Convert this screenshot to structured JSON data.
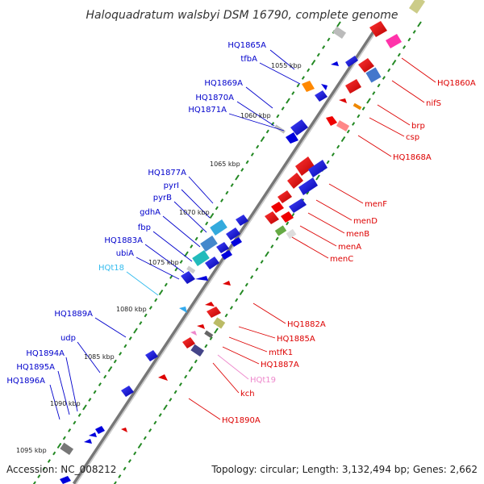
{
  "title": "Haloquadratum walsbyi DSM 16790, complete genome",
  "footer": {
    "accession": "Accession: NC_008212",
    "summary": "Topology: circular; Length: 3,132,494 bp; Genes: 2,662"
  },
  "kbp_labels": [
    "1055 kbp",
    "1060 kbp",
    "1065 kbp",
    "1070 kbp",
    "1075 kbp",
    "1080 kbp",
    "1085 kbp",
    "1090 kbp",
    "1095 kbp"
  ],
  "left_labels": [
    {
      "text": "HQ1865A",
      "color": "#0000cc"
    },
    {
      "text": "tfbA",
      "color": "#0000cc"
    },
    {
      "text": "HQ1869A",
      "color": "#0000cc"
    },
    {
      "text": "HQ1870A",
      "color": "#0000cc"
    },
    {
      "text": "HQ1871A",
      "color": "#0000cc"
    },
    {
      "text": "HQ1877A",
      "color": "#0000cc"
    },
    {
      "text": "pyrI",
      "color": "#0000cc"
    },
    {
      "text": "pyrB",
      "color": "#0000cc"
    },
    {
      "text": "gdhA",
      "color": "#0000cc"
    },
    {
      "text": "fbp",
      "color": "#0000cc"
    },
    {
      "text": "HQ1883A",
      "color": "#0000cc"
    },
    {
      "text": "ubiA",
      "color": "#0000cc"
    },
    {
      "text": "HQt18",
      "color": "#33bbee"
    },
    {
      "text": "HQ1889A",
      "color": "#0000cc"
    },
    {
      "text": "udp",
      "color": "#0000cc"
    },
    {
      "text": "HQ1894A",
      "color": "#0000cc"
    },
    {
      "text": "HQ1895A",
      "color": "#0000cc"
    },
    {
      "text": "HQ1896A",
      "color": "#0000cc"
    }
  ],
  "right_labels": [
    {
      "text": "HQ1860A",
      "color": "#dd0000"
    },
    {
      "text": "nifS",
      "color": "#dd0000"
    },
    {
      "text": "brp",
      "color": "#dd0000"
    },
    {
      "text": "csp",
      "color": "#dd0000"
    },
    {
      "text": "HQ1868A",
      "color": "#dd0000"
    },
    {
      "text": "menF",
      "color": "#dd0000"
    },
    {
      "text": "menD",
      "color": "#dd0000"
    },
    {
      "text": "menB",
      "color": "#dd0000"
    },
    {
      "text": "menA",
      "color": "#dd0000"
    },
    {
      "text": "menC",
      "color": "#dd0000"
    },
    {
      "text": "HQ1882A",
      "color": "#dd0000"
    },
    {
      "text": "HQ1885A",
      "color": "#dd0000"
    },
    {
      "text": "mtfK1",
      "color": "#dd0000"
    },
    {
      "text": "HQ1887A",
      "color": "#dd0000"
    },
    {
      "text": "HQt19",
      "color": "#ee88cc"
    },
    {
      "text": "kch",
      "color": "#dd0000"
    },
    {
      "text": "HQ1890A",
      "color": "#dd0000"
    }
  ],
  "colors": {
    "backbone": "#888888",
    "forward_strand": "#0000dd",
    "reverse_strand": "#dd0000",
    "tick_green": "#228822"
  }
}
